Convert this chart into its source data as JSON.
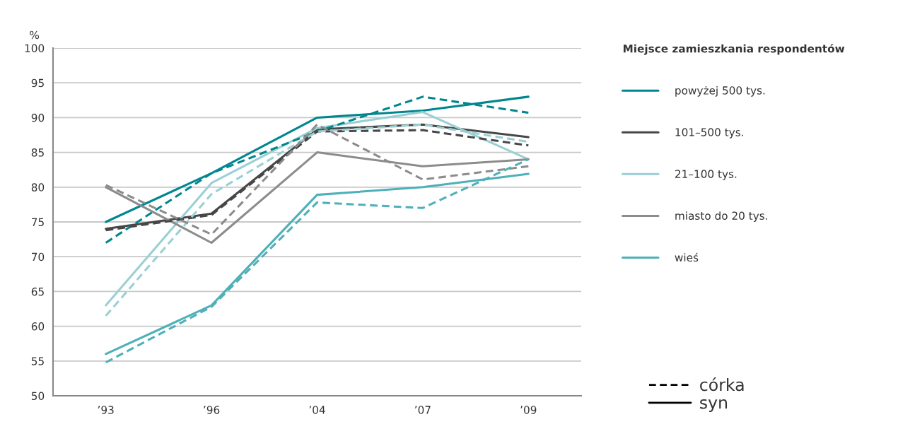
{
  "chart_data": {
    "type": "line",
    "ylabel": "%",
    "legend_title": "Miejsce zamieszkania respondentów",
    "categories": [
      "’93",
      "’96",
      "’04",
      "’07",
      "’09"
    ],
    "ylim": [
      50,
      100
    ],
    "yticks": [
      50,
      55,
      60,
      65,
      70,
      75,
      80,
      85,
      90,
      95,
      100
    ],
    "grid": "y",
    "legend": "right",
    "annotations": [
      "córka",
      "syn"
    ],
    "series": [
      {
        "name": "powyżej 500 tys.",
        "color": "#00868f",
        "line_style": "solid",
        "values": [
          75,
          82,
          90,
          91,
          93
        ]
      },
      {
        "name": "101–500 tys.",
        "color": "#474747",
        "line_style": "solid",
        "values": [
          74,
          76.2,
          88.3,
          89,
          87.2
        ]
      },
      {
        "name": "21–100 tys.",
        "color": "#9ad0d4",
        "line_style": "solid",
        "values": [
          63,
          80.6,
          88.5,
          90.8,
          84
        ]
      },
      {
        "name": "miasto do 20 tys.",
        "color": "#8c8c8c",
        "line_style": "solid",
        "values": [
          80,
          72,
          85,
          83,
          84
        ]
      },
      {
        "name": "wieś",
        "color": "#4eb0b8",
        "line_style": "solid",
        "values": [
          56,
          63,
          78.9,
          80,
          81.9
        ]
      },
      {
        "color": "#00868f",
        "line_style": "dashed",
        "values": [
          72,
          82,
          88,
          93,
          90.7
        ]
      },
      {
        "color": "#474747",
        "line_style": "dashed",
        "values": [
          73.8,
          76,
          88,
          88.2,
          86
        ]
      },
      {
        "color": "#9ad0d4",
        "line_style": "dashed",
        "values": [
          61.5,
          79,
          88,
          89,
          86.5
        ]
      },
      {
        "color": "#8c8c8c",
        "line_style": "dashed",
        "values": [
          80.3,
          73.2,
          89,
          81.1,
          83
        ]
      },
      {
        "color": "#4eb0b8",
        "line_style": "dashed",
        "values": [
          54.8,
          62.8,
          77.8,
          77,
          84
        ]
      }
    ]
  }
}
